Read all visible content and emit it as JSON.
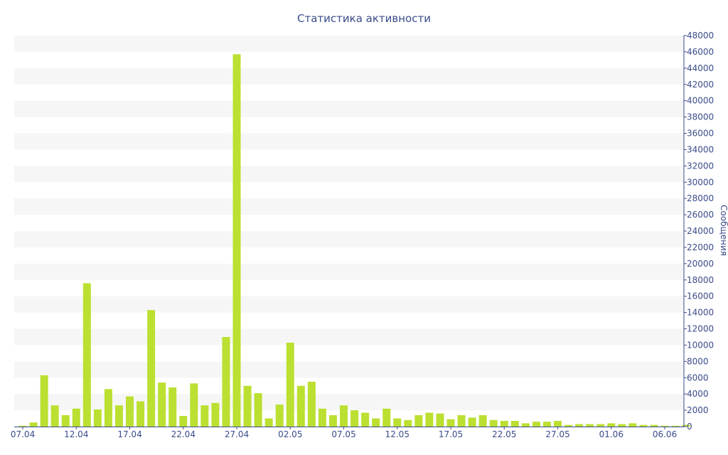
{
  "chart_data": {
    "type": "bar",
    "title": "Статистика активности",
    "ylabel": "Сообщения",
    "xlabel": "",
    "ylim": [
      0,
      48000
    ],
    "y_ticks": [
      0,
      2000,
      4000,
      6000,
      8000,
      10000,
      12000,
      14000,
      16000,
      18000,
      20000,
      22000,
      24000,
      26000,
      28000,
      30000,
      32000,
      34000,
      36000,
      38000,
      40000,
      42000,
      44000,
      46000,
      48000
    ],
    "y_axis_side": "right",
    "x_tick_labels": [
      "07.04",
      "12.04",
      "17.04",
      "22.04",
      "27.04",
      "02.05",
      "07.05",
      "12.05",
      "17.05",
      "22.05",
      "27.05",
      "01.06",
      "06.06"
    ],
    "bar_color": "#bbe031",
    "band_color": "#f6f6f6",
    "text_color": "#3a4b8a",
    "categories": [
      "07.04",
      "08.04",
      "09.04",
      "10.04",
      "11.04",
      "12.04",
      "13.04",
      "14.04",
      "15.04",
      "16.04",
      "17.04",
      "18.04",
      "19.04",
      "20.04",
      "21.04",
      "22.04",
      "23.04",
      "24.04",
      "25.04",
      "26.04",
      "27.04",
      "28.04",
      "29.04",
      "30.04",
      "01.05",
      "02.05",
      "03.05",
      "04.05",
      "05.05",
      "06.05",
      "07.05",
      "08.05",
      "09.05",
      "10.05",
      "11.05",
      "12.05",
      "13.05",
      "14.05",
      "15.05",
      "16.05",
      "17.05",
      "18.05",
      "19.05",
      "20.05",
      "21.05",
      "22.05",
      "23.05",
      "24.05",
      "25.05",
      "26.05",
      "27.05",
      "28.05",
      "29.05",
      "30.05",
      "31.05",
      "01.06",
      "02.06",
      "03.06",
      "04.06",
      "05.06",
      "06.06",
      "07.06",
      "08.06"
    ],
    "values": [
      100,
      500,
      6300,
      2600,
      1400,
      2200,
      17600,
      2100,
      4600,
      2600,
      3700,
      3100,
      14300,
      5400,
      4800,
      1300,
      5300,
      2600,
      2900,
      11000,
      45700,
      5000,
      4100,
      1000,
      2700,
      10300,
      5000,
      5500,
      2200,
      1400,
      2600,
      2000,
      1700,
      1000,
      2200,
      1000,
      800,
      1400,
      1700,
      1600,
      900,
      1400,
      1100,
      1400,
      800,
      700,
      700,
      400,
      600,
      600,
      700,
      200,
      300,
      300,
      300,
      400,
      300,
      400,
      200,
      200,
      100,
      100,
      200
    ]
  }
}
